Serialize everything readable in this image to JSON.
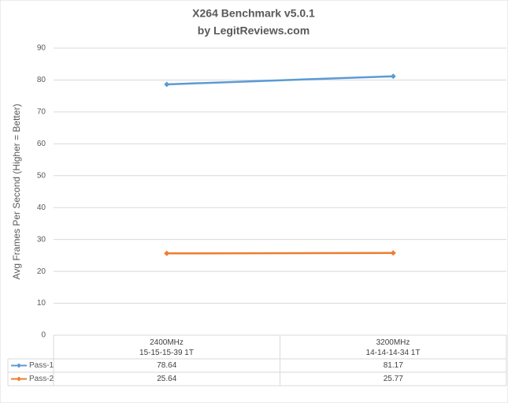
{
  "chart_data": {
    "type": "line",
    "title": "X264 Benchmark v5.0.1",
    "subtitle": "by LegitReviews.com",
    "y_label": "Avg Frames Per Second (Higher = Better)",
    "categories": [
      "2400MHz\n15-15-15-39 1T",
      "3200MHz\n14-14-14-34 1T"
    ],
    "series": [
      {
        "name": "Pass-1",
        "color": "#5b9bd5",
        "values": [
          78.64,
          81.17
        ]
      },
      {
        "name": "Pass-2",
        "color": "#ed7d31",
        "values": [
          25.64,
          25.77
        ]
      }
    ],
    "ylim": [
      0,
      90
    ],
    "yticks": [
      0,
      10,
      20,
      30,
      40,
      50,
      60,
      70,
      80,
      90
    ],
    "grid": true
  }
}
